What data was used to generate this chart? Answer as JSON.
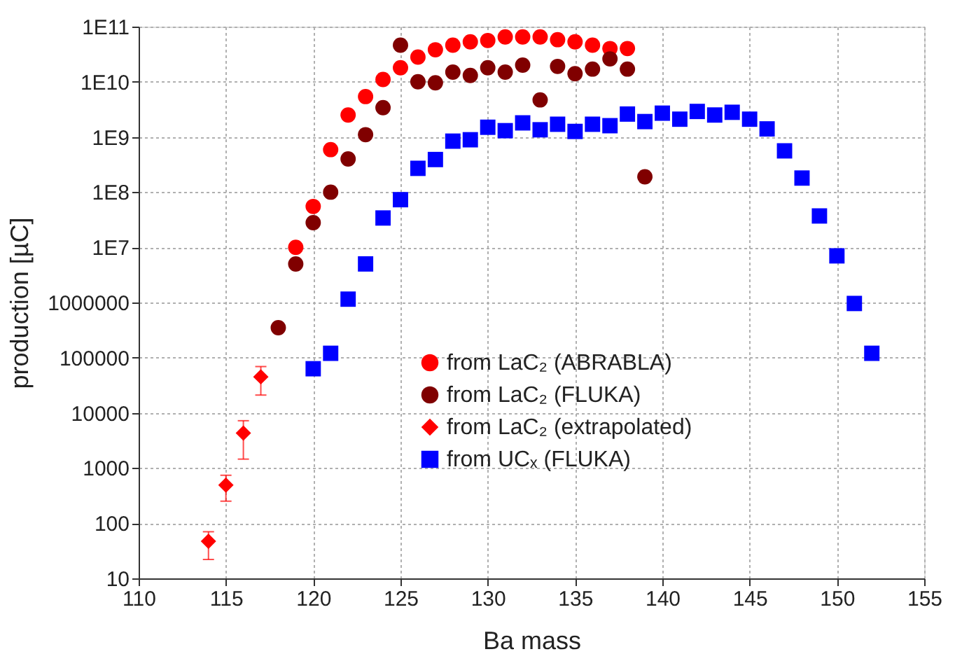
{
  "chart_data": {
    "type": "scatter",
    "xlabel": "Ba mass",
    "ylabel": "production [µC]",
    "log": "y",
    "grid": true,
    "legend": "bottom right",
    "xlim": [
      110,
      155
    ],
    "xticks": [
      110,
      115,
      120,
      125,
      130,
      135,
      140,
      145,
      150,
      155
    ],
    "ylim": [
      10,
      100000000000
    ],
    "yticks": [
      10,
      100,
      1000,
      10000,
      100000,
      1000000,
      {
        "value": 10000000,
        "label": "1E7"
      },
      {
        "value": 100000000,
        "label": "1E8"
      },
      {
        "value": 1000000000,
        "label": "1E9"
      },
      {
        "value": 10000000000,
        "label": "1E10"
      },
      {
        "value": 100000000000,
        "label": "1E11"
      }
    ],
    "series": [
      {
        "name": "from LaC₂ (ABRABLA)",
        "color": "#ff0000",
        "marker": "circle",
        "x": [
          119,
          120,
          121,
          122,
          123,
          124,
          125,
          126,
          127,
          128,
          129,
          130,
          131,
          132,
          133,
          134,
          135,
          136,
          137,
          138
        ],
        "values": [
          10000000,
          55000000,
          590000000,
          2500000000,
          5400000000,
          11000000000,
          18000000000,
          28000000000,
          38000000000,
          46000000000,
          53000000000,
          56000000000,
          65000000000,
          65000000000,
          65000000000,
          58000000000,
          53000000000,
          46000000000,
          40000000000,
          40000000000
        ]
      },
      {
        "name": "from LaC₂ (FLUKA)",
        "color": "#800000",
        "marker": "circle",
        "x": [
          118,
          119,
          120,
          121,
          122,
          123,
          124,
          125,
          126,
          127,
          128,
          129,
          130,
          131,
          132,
          133,
          134,
          135,
          136,
          137,
          138,
          139
        ],
        "values": [
          350000,
          5000000,
          28000000,
          100000000,
          400000000,
          1100000000,
          3400000000,
          46000000000,
          10000000000,
          9600000000,
          15000000000,
          13000000000,
          18000000000,
          15000000000,
          20000000000,
          4700000000,
          19000000000,
          14000000000,
          17000000000,
          26000000000,
          17000000000,
          190000000
        ]
      },
      {
        "name": "from LaC₂ (extrapolated)",
        "color": "#ff0000",
        "marker": "diamond",
        "x": [
          114,
          115,
          116,
          117
        ],
        "values": [
          47,
          490,
          4300,
          45000
        ],
        "errors": [
          [
            22,
            70
          ],
          [
            250,
            740
          ],
          [
            1450,
            7200
          ],
          [
            21000,
            69000
          ]
        ]
      },
      {
        "name": "from UCₓ (FLUKA)",
        "color": "#0000ff",
        "marker": "square",
        "x": [
          120,
          121,
          122,
          123,
          124,
          125,
          126,
          127,
          128,
          129,
          130,
          131,
          132,
          133,
          134,
          135,
          136,
          137,
          138,
          139,
          140,
          141,
          142,
          143,
          144,
          145,
          146,
          147,
          148,
          149,
          150,
          151,
          152
        ],
        "values": [
          63000,
          120000,
          1150000,
          5000000,
          34000000,
          73000000,
          270000000,
          390000000,
          840000000,
          890000000,
          1500000000,
          1300000000,
          1800000000,
          1350000000,
          1700000000,
          1260000000,
          1700000000,
          1600000000,
          2600000000,
          1900000000,
          2700000000,
          2100000000,
          2900000000,
          2500000000,
          2800000000,
          2100000000,
          1400000000,
          560000000,
          180000000,
          37000000,
          7000000,
          960000,
          120000
        ]
      }
    ]
  }
}
